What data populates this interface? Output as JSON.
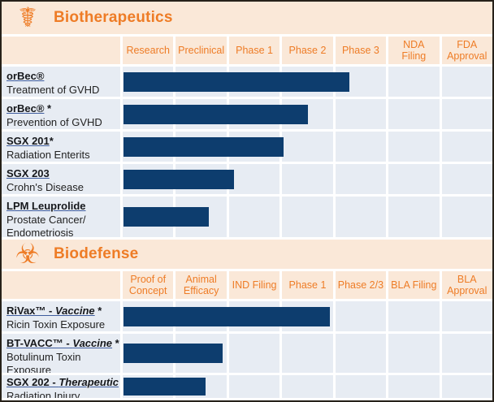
{
  "colors": {
    "accent_orange": "#ee7c26",
    "header_peach": "#fae8d8",
    "bar_navy": "#0d3d6e",
    "cell_blue": "#e7ecf3",
    "frame_border": "#262119",
    "gap_white": "#ffffff"
  },
  "sections": [
    {
      "title": "Biotherapeutics",
      "icon": "caduceus-icon",
      "icon_glyph": "☤",
      "columns": [
        "Research",
        "Preclinical",
        "Phase 1",
        "Phase 2",
        "Phase 3",
        "NDA Filing",
        "FDA Approval"
      ],
      "rows": [
        {
          "name": "orBec®",
          "name_italic": "",
          "suffix": "",
          "desc": "Treatment of GVHD",
          "bar_pct": 61.2
        },
        {
          "name": "orBec®",
          "name_italic": "",
          "suffix": " *",
          "desc": "Prevention of GVHD",
          "bar_pct": 49.9
        },
        {
          "name": "SGX 201",
          "name_italic": "",
          "suffix": "*",
          "desc": "Radiation Enterits",
          "bar_pct": 43.2
        },
        {
          "name": "SGX 203",
          "name_italic": "",
          "suffix": "",
          "desc": "Crohn's Disease",
          "bar_pct": 29.9
        },
        {
          "name": "LPM Leuprolide",
          "name_italic": "",
          "suffix": "",
          "desc": "Prostate Cancer/ Endometriosis",
          "bar_pct": 23.1
        }
      ]
    },
    {
      "title": "Biodefense",
      "icon": "biohazard-icon",
      "icon_glyph": "☣",
      "columns": [
        "Proof of Concept",
        "Animal Efficacy",
        "IND Filing",
        "Phase 1",
        "Phase 2/3",
        "BLA Filing",
        "BLA Approval"
      ],
      "rows": [
        {
          "name": "RiVax™ - ",
          "name_italic": "Vaccine",
          "suffix": " *",
          "desc": "Ricin Toxin Exposure",
          "bar_pct": 55.9
        },
        {
          "name": "BT-VACC™ - ",
          "name_italic": "Vaccine",
          "suffix": " *",
          "desc": "Botulinum Toxin Exposure",
          "bar_pct": 26.8
        },
        {
          "name": "SGX 202 - ",
          "name_italic": "Therapeutic",
          "suffix": " *",
          "desc": "Radiation Injury",
          "bar_pct": 22.2
        }
      ]
    }
  ],
  "chart_data": [
    {
      "type": "bar",
      "title": "Biotherapeutics",
      "orientation": "horizontal-progress",
      "phases": [
        "Research",
        "Preclinical",
        "Phase 1",
        "Phase 2",
        "Phase 3",
        "NDA Filing",
        "FDA Approval"
      ],
      "xlim_phase_units": [
        0,
        7
      ],
      "bar_color": "#0d3d6e",
      "bars": [
        {
          "label": "orBec®",
          "indication": "Treatment of GVHD",
          "progress_phase_units": 4.3,
          "progress_pct": 61.2,
          "reached": "Phase 3"
        },
        {
          "label": "orBec® *",
          "indication": "Prevention of GVHD",
          "progress_phase_units": 3.5,
          "progress_pct": 49.9,
          "reached": "Phase 2"
        },
        {
          "label": "SGX 201*",
          "indication": "Radiation Enterits",
          "progress_phase_units": 3.0,
          "progress_pct": 43.2,
          "reached": "Phase 1"
        },
        {
          "label": "SGX 203",
          "indication": "Crohn's Disease",
          "progress_phase_units": 2.1,
          "progress_pct": 29.9,
          "reached": "Preclinical"
        },
        {
          "label": "LPM Leuprolide",
          "indication": "Prostate Cancer/Endometriosis",
          "progress_phase_units": 1.6,
          "progress_pct": 23.1,
          "reached": "Preclinical"
        }
      ]
    },
    {
      "type": "bar",
      "title": "Biodefense",
      "orientation": "horizontal-progress",
      "phases": [
        "Proof of Concept",
        "Animal Efficacy",
        "IND Filing",
        "Phase 1",
        "Phase 2/3",
        "BLA Filing",
        "BLA Approval"
      ],
      "xlim_phase_units": [
        0,
        7
      ],
      "bar_color": "#0d3d6e",
      "bars": [
        {
          "label": "RiVax™ - Vaccine *",
          "indication": "Ricin Toxin Exposure",
          "progress_phase_units": 3.9,
          "progress_pct": 55.9,
          "reached": "Phase 1"
        },
        {
          "label": "BT-VACC™ - Vaccine *",
          "indication": "Botulinum Toxin Exposure",
          "progress_phase_units": 1.9,
          "progress_pct": 26.8,
          "reached": "Animal Efficacy"
        },
        {
          "label": "SGX 202 - Therapeutic *",
          "indication": "Radiation Injury",
          "progress_phase_units": 1.6,
          "progress_pct": 22.2,
          "reached": "Animal Efficacy"
        }
      ]
    }
  ]
}
